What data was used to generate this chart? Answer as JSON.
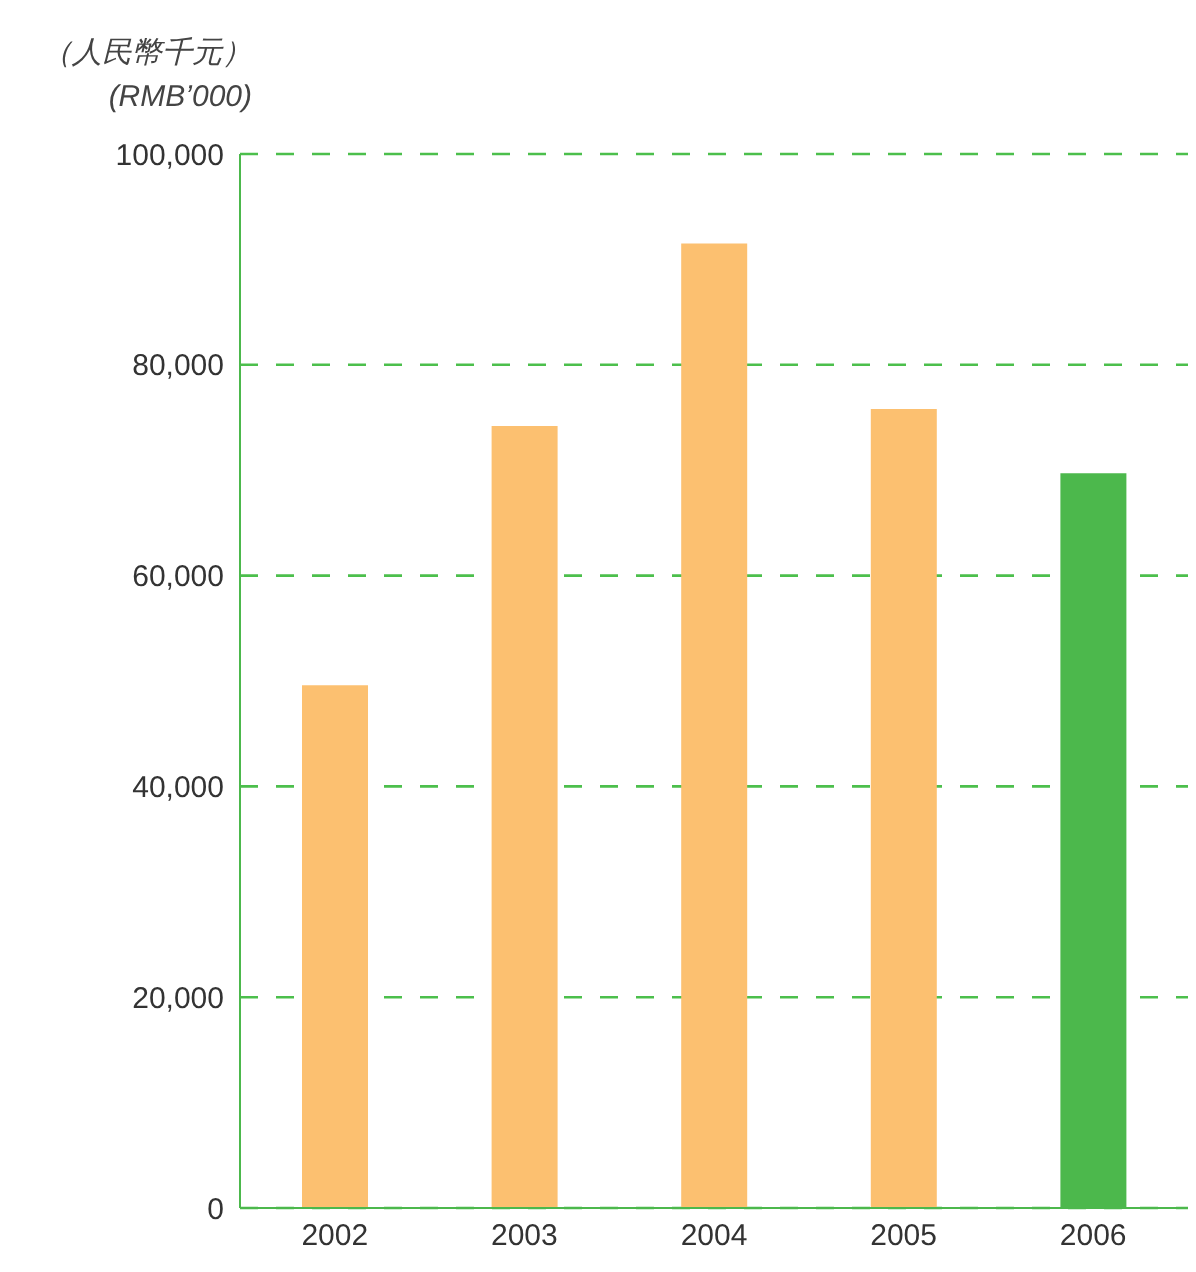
{
  "chart_data": {
    "type": "bar",
    "ylabel": "（人民幣千元）\n(RMB’000)",
    "categories": [
      "2002",
      "2003",
      "2004",
      "2005",
      "2006"
    ],
    "values": [
      49600,
      74200,
      91500,
      75800,
      69700
    ],
    "colors": [
      "#fcc070",
      "#fcc070",
      "#fcc070",
      "#fcc070",
      "#4cb84c"
    ],
    "ylim": [
      0,
      100000
    ],
    "yticks": [
      0,
      {
        "value": 20000,
        "label": "20,000"
      },
      {
        "value": 40000,
        "label": "40,000"
      },
      {
        "value": 60000,
        "label": "60,000"
      },
      {
        "value": 80000,
        "label": "80,000"
      },
      {
        "value": 100000,
        "label": "100,000"
      }
    ],
    "grid": "y"
  }
}
